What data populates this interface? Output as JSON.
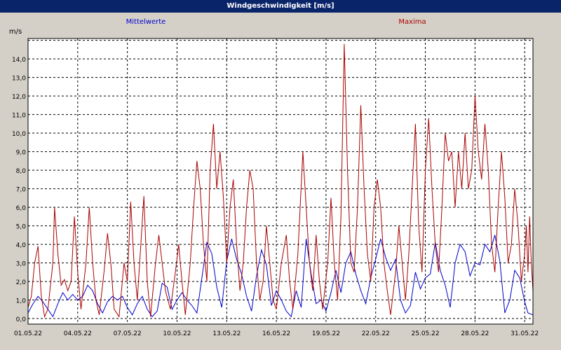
{
  "window": {
    "title": "Windgeschwindigkeit [m/s]"
  },
  "chart_data": {
    "type": "line",
    "title": "Windgeschwindigkeit [m/s]",
    "ylabel": "m/s",
    "xlabel": "",
    "ylim": [
      -0.3,
      15.1
    ],
    "y_ticks": [
      "0,0",
      "1,0",
      "2,0",
      "3,0",
      "4,0",
      "5,0",
      "6,0",
      "7,0",
      "8,0",
      "9,0",
      "10,0",
      "11,0",
      "12,0",
      "13,0",
      "14,0"
    ],
    "x_tick_labels": [
      "01.05.22",
      "04.05.22",
      "07.05.22",
      "10.05.22",
      "13.05.22",
      "16.05.22",
      "19.05.22",
      "22.05.22",
      "25.05.22",
      "28.05.22",
      "31.05.22"
    ],
    "xlim_days": [
      0,
      30.5
    ],
    "grid": true,
    "legend": "top",
    "series": [
      {
        "name": "Mittelwerte",
        "color": "#0000cc",
        "x_unit": "days since 01.05.22",
        "points": [
          [
            0.0,
            0.3
          ],
          [
            0.3,
            0.8
          ],
          [
            0.6,
            1.2
          ],
          [
            0.9,
            0.9
          ],
          [
            1.2,
            0.5
          ],
          [
            1.5,
            0.1
          ],
          [
            1.8,
            0.8
          ],
          [
            2.1,
            1.4
          ],
          [
            2.4,
            1.0
          ],
          [
            2.7,
            1.3
          ],
          [
            3.0,
            1.0
          ],
          [
            3.3,
            1.2
          ],
          [
            3.6,
            1.8
          ],
          [
            3.9,
            1.5
          ],
          [
            4.2,
            0.8
          ],
          [
            4.5,
            0.3
          ],
          [
            4.8,
            0.9
          ],
          [
            5.1,
            1.2
          ],
          [
            5.4,
            1.0
          ],
          [
            5.7,
            1.2
          ],
          [
            6.0,
            0.6
          ],
          [
            6.3,
            0.2
          ],
          [
            6.6,
            0.8
          ],
          [
            6.9,
            1.2
          ],
          [
            7.2,
            0.5
          ],
          [
            7.5,
            0.1
          ],
          [
            7.8,
            0.4
          ],
          [
            8.1,
            1.9
          ],
          [
            8.4,
            1.7
          ],
          [
            8.7,
            0.5
          ],
          [
            9.0,
            1.0
          ],
          [
            9.3,
            1.4
          ],
          [
            9.6,
            1.0
          ],
          [
            9.9,
            0.7
          ],
          [
            10.2,
            0.3
          ],
          [
            10.5,
            2.2
          ],
          [
            10.8,
            4.1
          ],
          [
            11.1,
            3.5
          ],
          [
            11.4,
            1.7
          ],
          [
            11.7,
            0.6
          ],
          [
            12.0,
            3.1
          ],
          [
            12.3,
            4.3
          ],
          [
            12.6,
            3.2
          ],
          [
            12.9,
            2.4
          ],
          [
            13.2,
            1.2
          ],
          [
            13.5,
            0.4
          ],
          [
            13.8,
            2.3
          ],
          [
            14.1,
            3.7
          ],
          [
            14.4,
            2.9
          ],
          [
            14.7,
            0.7
          ],
          [
            15.0,
            1.5
          ],
          [
            15.3,
            1.0
          ],
          [
            15.6,
            0.4
          ],
          [
            15.9,
            0.1
          ],
          [
            16.2,
            1.5
          ],
          [
            16.5,
            0.6
          ],
          [
            16.8,
            4.3
          ],
          [
            17.1,
            2.4
          ],
          [
            17.4,
            0.8
          ],
          [
            17.7,
            1.0
          ],
          [
            18.0,
            0.4
          ],
          [
            18.3,
            1.4
          ],
          [
            18.6,
            2.6
          ],
          [
            18.9,
            1.4
          ],
          [
            19.2,
            3.0
          ],
          [
            19.5,
            3.6
          ],
          [
            19.8,
            2.4
          ],
          [
            20.1,
            1.5
          ],
          [
            20.4,
            0.8
          ],
          [
            20.7,
            2.2
          ],
          [
            21.0,
            3.2
          ],
          [
            21.3,
            4.3
          ],
          [
            21.6,
            3.3
          ],
          [
            21.9,
            2.6
          ],
          [
            22.2,
            3.2
          ],
          [
            22.5,
            1.0
          ],
          [
            22.8,
            0.3
          ],
          [
            23.1,
            0.7
          ],
          [
            23.4,
            2.5
          ],
          [
            23.7,
            1.6
          ],
          [
            24.0,
            2.2
          ],
          [
            24.3,
            2.4
          ],
          [
            24.6,
            4.1
          ],
          [
            24.9,
            2.6
          ],
          [
            25.2,
            1.8
          ],
          [
            25.5,
            0.6
          ],
          [
            25.8,
            3.0
          ],
          [
            26.1,
            4.0
          ],
          [
            26.4,
            3.6
          ],
          [
            26.7,
            2.3
          ],
          [
            27.0,
            3.0
          ],
          [
            27.3,
            2.9
          ],
          [
            27.6,
            4.0
          ],
          [
            27.9,
            3.6
          ],
          [
            28.2,
            4.5
          ],
          [
            28.5,
            3.1
          ],
          [
            28.8,
            0.3
          ],
          [
            29.1,
            1.0
          ],
          [
            29.4,
            2.6
          ],
          [
            29.7,
            2.2
          ],
          [
            30.0,
            0.9
          ],
          [
            30.2,
            0.3
          ],
          [
            30.5,
            0.2
          ]
        ]
      },
      {
        "name": "Maxima",
        "color": "#aa0000",
        "x_unit": "days since 01.05.22",
        "points": [
          [
            0.0,
            0.6
          ],
          [
            0.2,
            1.2
          ],
          [
            0.4,
            3.0
          ],
          [
            0.6,
            3.9
          ],
          [
            0.8,
            1.2
          ],
          [
            1.0,
            0.1
          ],
          [
            1.2,
            0.5
          ],
          [
            1.5,
            3.0
          ],
          [
            1.6,
            6.0
          ],
          [
            1.8,
            3.5
          ],
          [
            2.0,
            1.8
          ],
          [
            2.2,
            2.1
          ],
          [
            2.4,
            1.5
          ],
          [
            2.6,
            2.0
          ],
          [
            2.8,
            5.5
          ],
          [
            3.0,
            2.5
          ],
          [
            3.2,
            0.5
          ],
          [
            3.5,
            3.0
          ],
          [
            3.7,
            6.0
          ],
          [
            3.9,
            3.0
          ],
          [
            4.1,
            1.0
          ],
          [
            4.3,
            0.2
          ],
          [
            4.6,
            2.6
          ],
          [
            4.8,
            4.6
          ],
          [
            5.0,
            3.0
          ],
          [
            5.2,
            0.5
          ],
          [
            5.5,
            0.1
          ],
          [
            5.8,
            3.0
          ],
          [
            6.0,
            2.0
          ],
          [
            6.2,
            6.3
          ],
          [
            6.4,
            3.0
          ],
          [
            6.6,
            1.0
          ],
          [
            6.8,
            3.8
          ],
          [
            7.0,
            6.6
          ],
          [
            7.2,
            2.0
          ],
          [
            7.4,
            0.1
          ],
          [
            7.7,
            3.0
          ],
          [
            7.9,
            4.5
          ],
          [
            8.1,
            3.0
          ],
          [
            8.3,
            1.5
          ],
          [
            8.6,
            0.5
          ],
          [
            8.9,
            2.5
          ],
          [
            9.1,
            4.0
          ],
          [
            9.3,
            2.0
          ],
          [
            9.5,
            0.2
          ],
          [
            9.8,
            3.0
          ],
          [
            10.0,
            6.0
          ],
          [
            10.2,
            8.5
          ],
          [
            10.4,
            7.0
          ],
          [
            10.6,
            4.0
          ],
          [
            10.8,
            2.0
          ],
          [
            11.0,
            8.0
          ],
          [
            11.2,
            10.5
          ],
          [
            11.4,
            7.0
          ],
          [
            11.6,
            9.0
          ],
          [
            11.8,
            6.5
          ],
          [
            12.0,
            3.0
          ],
          [
            12.2,
            6.0
          ],
          [
            12.4,
            7.5
          ],
          [
            12.6,
            4.0
          ],
          [
            12.8,
            1.5
          ],
          [
            13.0,
            3.0
          ],
          [
            13.2,
            6.0
          ],
          [
            13.4,
            8.0
          ],
          [
            13.6,
            7.0
          ],
          [
            13.8,
            3.0
          ],
          [
            14.0,
            1.0
          ],
          [
            14.2,
            2.0
          ],
          [
            14.4,
            5.0
          ],
          [
            14.6,
            3.0
          ],
          [
            14.8,
            1.0
          ],
          [
            15.0,
            0.5
          ],
          [
            15.3,
            3.0
          ],
          [
            15.6,
            4.5
          ],
          [
            15.8,
            2.0
          ],
          [
            16.0,
            0.5
          ],
          [
            16.3,
            3.5
          ],
          [
            16.6,
            9.0
          ],
          [
            16.8,
            6.0
          ],
          [
            17.0,
            3.0
          ],
          [
            17.2,
            1.5
          ],
          [
            17.4,
            4.5
          ],
          [
            17.6,
            2.0
          ],
          [
            17.8,
            0.5
          ],
          [
            18.1,
            3.0
          ],
          [
            18.3,
            6.5
          ],
          [
            18.5,
            3.0
          ],
          [
            18.7,
            1.0
          ],
          [
            18.9,
            5.5
          ],
          [
            19.1,
            14.8
          ],
          [
            19.3,
            8.0
          ],
          [
            19.5,
            3.0
          ],
          [
            19.7,
            2.5
          ],
          [
            19.9,
            6.0
          ],
          [
            20.1,
            11.5
          ],
          [
            20.3,
            7.0
          ],
          [
            20.5,
            3.5
          ],
          [
            20.7,
            2.0
          ],
          [
            20.9,
            6.0
          ],
          [
            21.1,
            7.5
          ],
          [
            21.3,
            6.0
          ],
          [
            21.5,
            3.0
          ],
          [
            21.7,
            1.5
          ],
          [
            21.9,
            0.2
          ],
          [
            22.2,
            2.5
          ],
          [
            22.4,
            5.0
          ],
          [
            22.6,
            3.0
          ],
          [
            22.8,
            1.0
          ],
          [
            23.0,
            3.5
          ],
          [
            23.2,
            7.0
          ],
          [
            23.4,
            10.5
          ],
          [
            23.6,
            5.0
          ],
          [
            23.8,
            2.5
          ],
          [
            24.0,
            8.0
          ],
          [
            24.2,
            10.8
          ],
          [
            24.4,
            7.0
          ],
          [
            24.6,
            4.0
          ],
          [
            24.8,
            2.5
          ],
          [
            25.0,
            6.0
          ],
          [
            25.2,
            10.0
          ],
          [
            25.4,
            8.5
          ],
          [
            25.6,
            9.0
          ],
          [
            25.8,
            6.0
          ],
          [
            26.0,
            9.0
          ],
          [
            26.2,
            7.0
          ],
          [
            26.4,
            10.0
          ],
          [
            26.6,
            7.0
          ],
          [
            26.8,
            8.0
          ],
          [
            27.0,
            12.0
          ],
          [
            27.2,
            9.0
          ],
          [
            27.4,
            7.5
          ],
          [
            27.6,
            10.5
          ],
          [
            27.8,
            8.0
          ],
          [
            28.0,
            4.0
          ],
          [
            28.2,
            2.5
          ],
          [
            28.4,
            6.0
          ],
          [
            28.6,
            9.0
          ],
          [
            28.8,
            6.5
          ],
          [
            29.0,
            3.0
          ],
          [
            29.2,
            4.0
          ],
          [
            29.4,
            7.0
          ],
          [
            29.6,
            5.0
          ],
          [
            29.8,
            2.0
          ],
          [
            30.0,
            3.5
          ],
          [
            30.1,
            5.0
          ],
          [
            30.2,
            2.5
          ],
          [
            30.3,
            5.5
          ],
          [
            30.4,
            3.0
          ],
          [
            30.5,
            1.5
          ]
        ]
      }
    ]
  }
}
